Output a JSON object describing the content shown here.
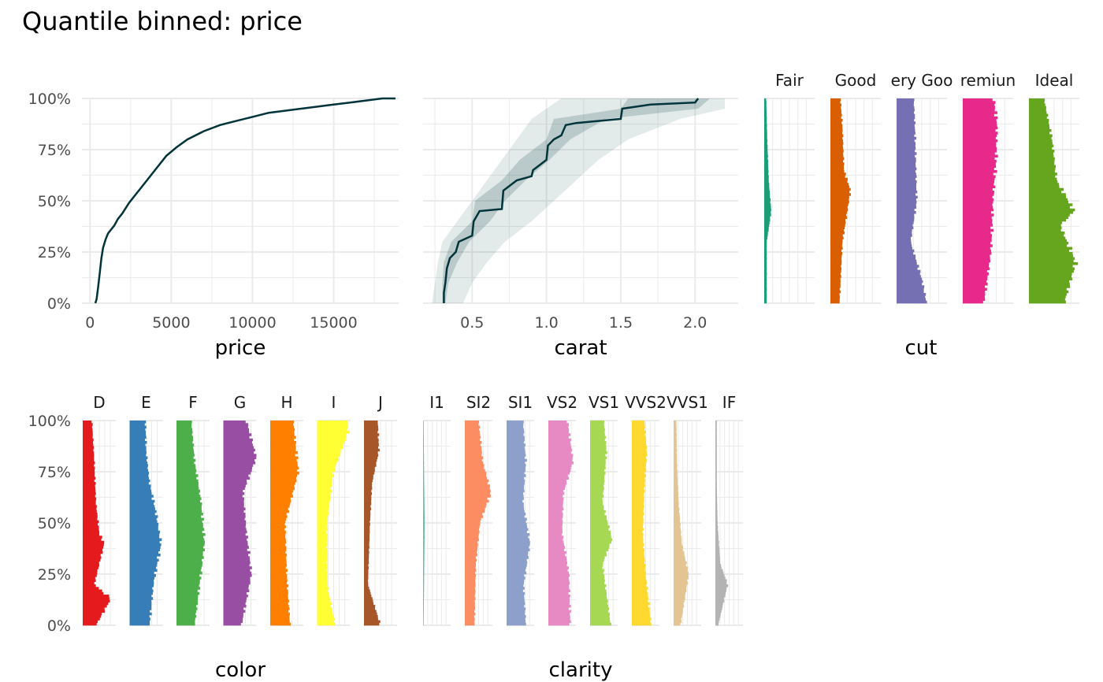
{
  "title": "Quantile binned: price",
  "y_ticks": [
    "0%",
    "25%",
    "50%",
    "75%",
    "100%"
  ],
  "chart_data": [
    {
      "id": "price",
      "type": "line",
      "xlabel": "price",
      "x_ticks": [
        0,
        5000,
        10000,
        15000
      ],
      "x_tick_labels": [
        "0",
        "5000",
        "10000",
        "15000"
      ],
      "xlim": [
        -500,
        19000
      ],
      "ylim": [
        0,
        1
      ],
      "line_color": "#00333a",
      "points": [
        [
          326,
          0
        ],
        [
          400,
          0.02
        ],
        [
          500,
          0.08
        ],
        [
          600,
          0.15
        ],
        [
          700,
          0.22
        ],
        [
          800,
          0.27
        ],
        [
          950,
          0.31
        ],
        [
          1100,
          0.34
        ],
        [
          1300,
          0.36
        ],
        [
          1500,
          0.38
        ],
        [
          1700,
          0.41
        ],
        [
          2000,
          0.44
        ],
        [
          2400,
          0.49
        ],
        [
          2900,
          0.54
        ],
        [
          3500,
          0.6
        ],
        [
          4100,
          0.66
        ],
        [
          4700,
          0.72
        ],
        [
          5300,
          0.76
        ],
        [
          6000,
          0.8
        ],
        [
          7000,
          0.84
        ],
        [
          8000,
          0.87
        ],
        [
          9000,
          0.89
        ],
        [
          10000,
          0.91
        ],
        [
          11000,
          0.93
        ],
        [
          12000,
          0.94
        ],
        [
          13000,
          0.95
        ],
        [
          14000,
          0.96
        ],
        [
          15000,
          0.97
        ],
        [
          16000,
          0.98
        ],
        [
          17000,
          0.99
        ],
        [
          18000,
          1.0
        ],
        [
          18800,
          1.0
        ]
      ]
    },
    {
      "id": "carat",
      "type": "line",
      "xlabel": "carat",
      "x_ticks": [
        0.5,
        1.0,
        1.5,
        2.0
      ],
      "x_tick_labels": [
        "0.5",
        "1.0",
        "1.5",
        "2.0"
      ],
      "xlim": [
        0.17,
        2.29
      ],
      "ylim": [
        0,
        1
      ],
      "line_color": "#00333a",
      "band_color": "#2a5a5a",
      "median": [
        [
          0.31,
          0
        ],
        [
          0.31,
          0.05
        ],
        [
          0.32,
          0.1
        ],
        [
          0.33,
          0.17
        ],
        [
          0.35,
          0.22
        ],
        [
          0.39,
          0.25
        ],
        [
          0.41,
          0.3
        ],
        [
          0.5,
          0.33
        ],
        [
          0.51,
          0.4
        ],
        [
          0.55,
          0.45
        ],
        [
          0.7,
          0.46
        ],
        [
          0.71,
          0.55
        ],
        [
          0.8,
          0.6
        ],
        [
          0.9,
          0.62
        ],
        [
          0.91,
          0.65
        ],
        [
          1.0,
          0.7
        ],
        [
          1.01,
          0.77
        ],
        [
          1.05,
          0.8
        ],
        [
          1.1,
          0.82
        ],
        [
          1.13,
          0.87
        ],
        [
          1.2,
          0.88
        ],
        [
          1.5,
          0.9
        ],
        [
          1.51,
          0.95
        ],
        [
          1.7,
          0.97
        ],
        [
          2.0,
          0.98
        ],
        [
          2.02,
          1.0
        ]
      ],
      "band_inner": [
        [
          0.3,
          0.32,
          0
        ],
        [
          0.3,
          0.34,
          0.1
        ],
        [
          0.31,
          0.4,
          0.2
        ],
        [
          0.36,
          0.48,
          0.3
        ],
        [
          0.5,
          0.62,
          0.4
        ],
        [
          0.52,
          0.72,
          0.5
        ],
        [
          0.7,
          0.86,
          0.6
        ],
        [
          0.82,
          1.02,
          0.7
        ],
        [
          1.0,
          1.16,
          0.8
        ],
        [
          1.05,
          1.4,
          0.9
        ],
        [
          1.5,
          2.02,
          0.95
        ],
        [
          1.55,
          2.1,
          1.0
        ]
      ],
      "band_outer": [
        [
          0.23,
          0.44,
          0
        ],
        [
          0.25,
          0.5,
          0.1
        ],
        [
          0.27,
          0.6,
          0.2
        ],
        [
          0.3,
          0.72,
          0.3
        ],
        [
          0.4,
          0.9,
          0.4
        ],
        [
          0.5,
          1.05,
          0.5
        ],
        [
          0.6,
          1.2,
          0.6
        ],
        [
          0.7,
          1.35,
          0.7
        ],
        [
          0.8,
          1.55,
          0.8
        ],
        [
          0.9,
          1.9,
          0.9
        ],
        [
          1.0,
          2.2,
          0.95
        ],
        [
          1.1,
          2.2,
          1.0
        ]
      ]
    },
    {
      "id": "cut",
      "type": "bar",
      "xlabel": "cut",
      "categories": [
        "Fair",
        "Good",
        "Very Good",
        "Premium",
        "Ideal"
      ],
      "strip_labels": [
        "Fair",
        "Good",
        "ery Goo",
        "remiun",
        "Ideal"
      ],
      "colors": [
        "#1b9e77",
        "#d95f02",
        "#7570b3",
        "#e7298a",
        "#66a61e"
      ],
      "profiles": [
        [
          [
            0,
            0.05
          ],
          [
            0.3,
            0.05
          ],
          [
            0.45,
            0.14
          ],
          [
            0.6,
            0.09
          ],
          [
            0.8,
            0.06
          ],
          [
            1,
            0.04
          ]
        ],
        [
          [
            0,
            0.18
          ],
          [
            0.3,
            0.24
          ],
          [
            0.55,
            0.4
          ],
          [
            0.65,
            0.27
          ],
          [
            0.85,
            0.24
          ],
          [
            1,
            0.2
          ]
        ],
        [
          [
            0,
            0.6
          ],
          [
            0.12,
            0.5
          ],
          [
            0.3,
            0.28
          ],
          [
            0.5,
            0.4
          ],
          [
            0.7,
            0.38
          ],
          [
            0.9,
            0.36
          ],
          [
            1,
            0.34
          ]
        ],
        [
          [
            0,
            0.42
          ],
          [
            0.25,
            0.56
          ],
          [
            0.5,
            0.6
          ],
          [
            0.7,
            0.66
          ],
          [
            0.88,
            0.68
          ],
          [
            1,
            0.62
          ]
        ],
        [
          [
            0,
            0.7
          ],
          [
            0.2,
            0.93
          ],
          [
            0.38,
            0.62
          ],
          [
            0.45,
            0.9
          ],
          [
            0.6,
            0.55
          ],
          [
            0.8,
            0.46
          ],
          [
            1,
            0.3
          ]
        ]
      ]
    },
    {
      "id": "color",
      "type": "bar",
      "xlabel": "color",
      "categories": [
        "D",
        "E",
        "F",
        "G",
        "H",
        "I",
        "J"
      ],
      "strip_labels": [
        "D",
        "E",
        "F",
        "G",
        "H",
        "I",
        "J"
      ],
      "colors": [
        "#e41a1c",
        "#377eb8",
        "#4daf4a",
        "#984ea3",
        "#ff7f00",
        "#ffff33",
        "#a65628"
      ],
      "profiles": [
        [
          [
            0,
            0.4
          ],
          [
            0.13,
            0.85
          ],
          [
            0.2,
            0.35
          ],
          [
            0.4,
            0.65
          ],
          [
            0.45,
            0.5
          ],
          [
            0.6,
            0.4
          ],
          [
            0.8,
            0.35
          ],
          [
            1,
            0.28
          ]
        ],
        [
          [
            0,
            0.6
          ],
          [
            0.2,
            0.72
          ],
          [
            0.4,
            0.95
          ],
          [
            0.55,
            0.8
          ],
          [
            0.7,
            0.6
          ],
          [
            0.85,
            0.5
          ],
          [
            1,
            0.48
          ]
        ],
        [
          [
            0,
            0.55
          ],
          [
            0.2,
            0.7
          ],
          [
            0.4,
            0.85
          ],
          [
            0.6,
            0.75
          ],
          [
            0.8,
            0.55
          ],
          [
            1,
            0.45
          ]
        ],
        [
          [
            0,
            0.55
          ],
          [
            0.25,
            0.85
          ],
          [
            0.45,
            0.7
          ],
          [
            0.65,
            0.6
          ],
          [
            0.82,
            1.0
          ],
          [
            1,
            0.7
          ]
        ],
        [
          [
            0,
            0.6
          ],
          [
            0.25,
            0.5
          ],
          [
            0.5,
            0.45
          ],
          [
            0.75,
            0.85
          ],
          [
            1,
            0.7
          ]
        ],
        [
          [
            0,
            0.55
          ],
          [
            0.2,
            0.3
          ],
          [
            0.5,
            0.3
          ],
          [
            0.75,
            0.5
          ],
          [
            0.95,
            0.95
          ],
          [
            1,
            0.9
          ]
        ],
        [
          [
            0,
            0.5
          ],
          [
            0.2,
            0.12
          ],
          [
            0.5,
            0.18
          ],
          [
            0.7,
            0.25
          ],
          [
            0.85,
            0.45
          ],
          [
            1,
            0.42
          ]
        ]
      ]
    },
    {
      "id": "clarity",
      "type": "bar",
      "xlabel": "clarity",
      "categories": [
        "I1",
        "SI2",
        "SI1",
        "VS2",
        "VS1",
        "VVS2",
        "VVS1",
        "IF"
      ],
      "strip_labels": [
        "I1",
        "SI2",
        "SI1",
        "VS2",
        "VS1",
        "VVS2",
        "VVS1",
        "IF"
      ],
      "colors": [
        "#66c2a5",
        "#fc8d62",
        "#8da0cb",
        "#e78ac3",
        "#a6d854",
        "#ffd92f",
        "#e5c494",
        "#b3b3b3"
      ],
      "profiles": [
        [
          [
            0,
            0.02
          ],
          [
            0.5,
            0.06
          ],
          [
            0.7,
            0.04
          ],
          [
            1,
            0.02
          ]
        ],
        [
          [
            0,
            0.35
          ],
          [
            0.3,
            0.4
          ],
          [
            0.5,
            0.55
          ],
          [
            0.65,
            0.95
          ],
          [
            0.8,
            0.65
          ],
          [
            1,
            0.5
          ]
        ],
        [
          [
            0,
            0.7
          ],
          [
            0.2,
            0.62
          ],
          [
            0.4,
            0.85
          ],
          [
            0.6,
            0.6
          ],
          [
            0.8,
            0.7
          ],
          [
            1,
            0.6
          ]
        ],
        [
          [
            0,
            0.8
          ],
          [
            0.25,
            0.75
          ],
          [
            0.45,
            0.5
          ],
          [
            0.65,
            0.55
          ],
          [
            0.8,
            0.9
          ],
          [
            1,
            0.7
          ]
        ],
        [
          [
            0,
            0.75
          ],
          [
            0.3,
            0.45
          ],
          [
            0.42,
            0.8
          ],
          [
            0.6,
            0.45
          ],
          [
            0.85,
            0.6
          ],
          [
            1,
            0.5
          ]
        ],
        [
          [
            0,
            0.7
          ],
          [
            0.25,
            0.5
          ],
          [
            0.45,
            0.4
          ],
          [
            0.65,
            0.45
          ],
          [
            0.85,
            0.55
          ],
          [
            1,
            0.45
          ]
        ],
        [
          [
            0,
            0.25
          ],
          [
            0.25,
            0.55
          ],
          [
            0.4,
            0.3
          ],
          [
            0.6,
            0.18
          ],
          [
            0.8,
            0.12
          ],
          [
            1,
            0.1
          ]
        ],
        [
          [
            0,
            0.1
          ],
          [
            0.2,
            0.45
          ],
          [
            0.3,
            0.18
          ],
          [
            0.5,
            0.08
          ],
          [
            0.7,
            0.05
          ],
          [
            1,
            0.05
          ]
        ]
      ]
    }
  ]
}
